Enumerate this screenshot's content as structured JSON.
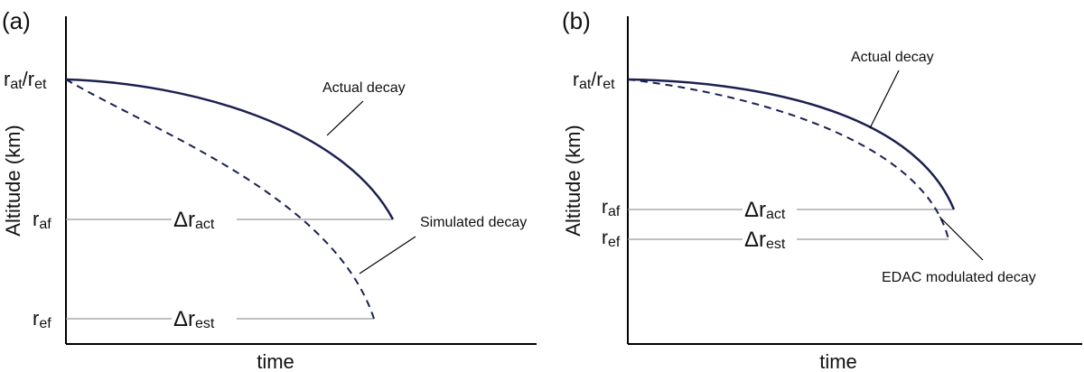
{
  "panels": [
    {
      "id": "a",
      "label": "(a)",
      "ylabel": "Altitude (km)",
      "xlabel": "time",
      "r_top": {
        "main": "r",
        "sub": "at",
        "sep": "/",
        "main2": "r",
        "sub2": "et"
      },
      "r_af": {
        "main": "r",
        "sub": "af"
      },
      "r_ef": {
        "main": "r",
        "sub": "ef"
      },
      "delta_act": {
        "sym": "Δ",
        "main": "r",
        "sub": "act"
      },
      "delta_est": {
        "sym": "Δ",
        "main": "r",
        "sub": "est"
      },
      "actual_label": "Actual decay",
      "simulated_label": "Simulated decay"
    },
    {
      "id": "b",
      "label": "(b)",
      "ylabel": "Altitude (km)",
      "xlabel": "time",
      "r_top": {
        "main": "r",
        "sub": "at",
        "sep": "/",
        "main2": "r",
        "sub2": "et"
      },
      "r_af": {
        "main": "r",
        "sub": "af"
      },
      "r_ef": {
        "main": "r",
        "sub": "ef"
      },
      "delta_act": {
        "sym": "Δ",
        "main": "r",
        "sub": "act"
      },
      "delta_est": {
        "sym": "Δ",
        "main": "r",
        "sub": "est"
      },
      "actual_label": "Actual decay",
      "edac_label": "EDAC modulated decay"
    }
  ],
  "colors": {
    "curve": "#1b2050",
    "axis": "#000000",
    "guide": "#9a9a9a",
    "text": "#111111"
  }
}
